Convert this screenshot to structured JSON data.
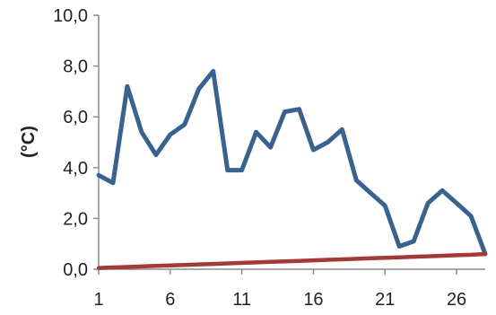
{
  "chart_data": {
    "type": "line",
    "title": "",
    "xlabel": "",
    "ylabel": "(°C)",
    "x": [
      1,
      2,
      3,
      4,
      5,
      6,
      7,
      8,
      9,
      10,
      11,
      12,
      13,
      14,
      15,
      16,
      17,
      18,
      19,
      20,
      21,
      22,
      23,
      24,
      25,
      26,
      27,
      28
    ],
    "xticks": [
      1,
      6,
      11,
      16,
      21,
      26
    ],
    "xticklabels": [
      "1",
      "6",
      "11",
      "16",
      "21",
      "26"
    ],
    "ylim": [
      0,
      10
    ],
    "yticks": [
      0,
      2,
      4,
      6,
      8,
      10
    ],
    "yticklabels": [
      "0,0",
      "2,0",
      "4,0",
      "6,0",
      "8,0",
      "10,0"
    ],
    "grid": false,
    "series": [
      {
        "color": "#3a6290",
        "values": [
          3.7,
          3.4,
          7.2,
          5.4,
          4.5,
          5.3,
          5.7,
          7.1,
          7.8,
          3.9,
          3.9,
          5.4,
          4.8,
          6.2,
          6.3,
          4.7,
          5.0,
          5.5,
          3.5,
          3.0,
          2.5,
          0.9,
          1.1,
          2.6,
          3.1,
          2.6,
          2.1,
          0.6
        ]
      },
      {
        "color": "#a23b36",
        "values": [
          0.05,
          0.07,
          0.09,
          0.11,
          0.13,
          0.15,
          0.17,
          0.19,
          0.21,
          0.23,
          0.25,
          0.27,
          0.29,
          0.31,
          0.33,
          0.35,
          0.37,
          0.39,
          0.41,
          0.43,
          0.45,
          0.47,
          0.49,
          0.51,
          0.53,
          0.55,
          0.57,
          0.6
        ]
      }
    ]
  }
}
